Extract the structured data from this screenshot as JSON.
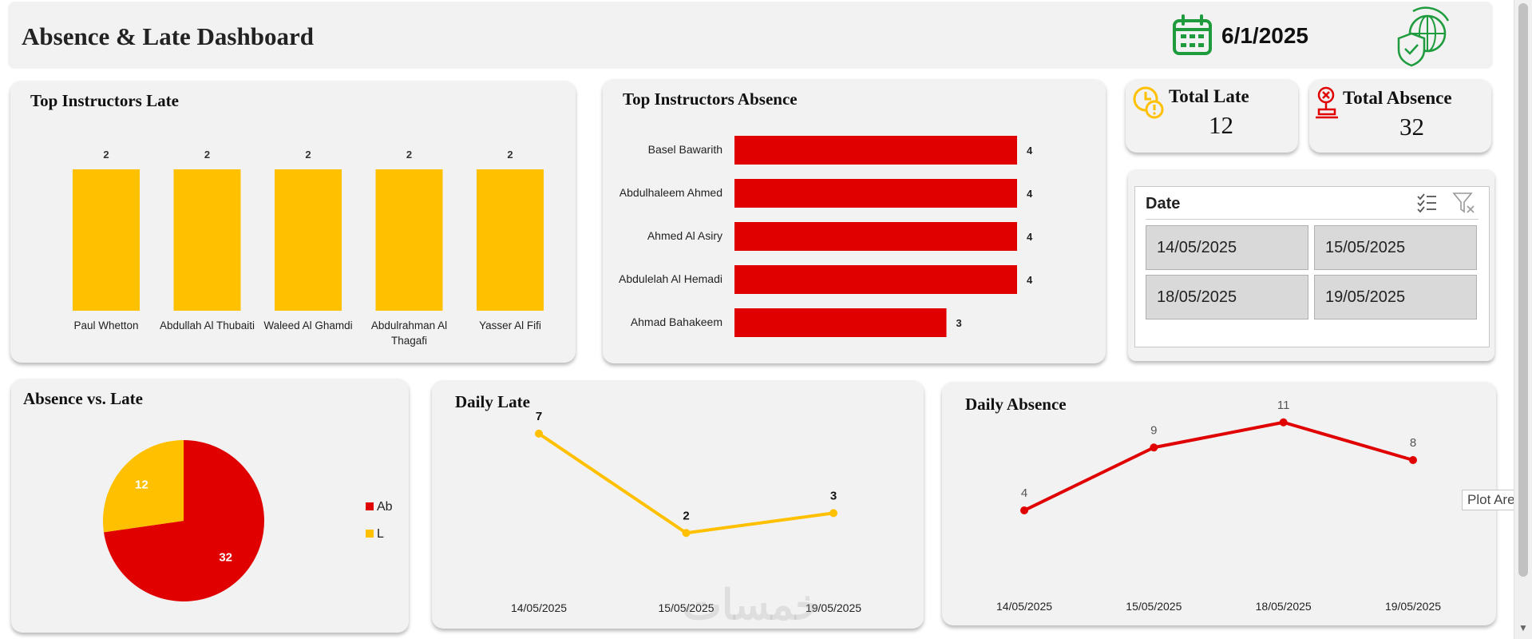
{
  "header": {
    "title": "Absence & Late  Dashboard",
    "date": "6/1/2025",
    "calendar_icon": "calendar-icon",
    "logo_icon": "globe-shield-icon"
  },
  "kpis": {
    "late_label": "Total Late",
    "late_value": "12",
    "absence_label": "Total Absence",
    "absence_value": "32"
  },
  "slicer": {
    "title": "Date",
    "items": [
      "14/05/2025",
      "15/05/2025",
      "18/05/2025",
      "19/05/2025"
    ]
  },
  "tooltip": "Plot Area",
  "watermark": "خمسات",
  "colors": {
    "yellow": "#FFC000",
    "red": "#E00000",
    "card": "#F2F2F2",
    "green": "#1e9b3c"
  },
  "chart_data": [
    {
      "id": "late",
      "type": "bar",
      "title": "Top Instructors Late",
      "categories": [
        "Paul Whetton",
        "Abdullah Al Thubaiti",
        "Waleed Al Ghamdi",
        "Abdulrahman Al Thagafi",
        "Yasser Al Fifi"
      ],
      "category_lines": [
        [
          "Paul Whetton"
        ],
        [
          "Abdullah Al Thubaiti"
        ],
        [
          "Waleed Al Ghamdi"
        ],
        [
          "Abdulrahman Al",
          "Thagafi"
        ],
        [
          "Yasser Al Fifi"
        ]
      ],
      "values": [
        2,
        2,
        2,
        2,
        2
      ],
      "ylim": [
        0,
        2
      ]
    },
    {
      "id": "absence",
      "type": "bar",
      "orientation": "horizontal",
      "title": "Top Instructors Absence",
      "categories": [
        "Basel Bawarith",
        "Abdulhaleem Ahmed",
        "Ahmed Al Asiry",
        "Abdulelah Al Hemadi",
        "Ahmad Bahakeem"
      ],
      "values": [
        4,
        4,
        4,
        4,
        3
      ],
      "xlim": [
        0,
        4
      ]
    },
    {
      "id": "pie",
      "type": "pie",
      "title": "Absence vs. Late",
      "labels": [
        "Ab",
        "L"
      ],
      "values": [
        32,
        12
      ],
      "legend": "right"
    },
    {
      "id": "daily_late",
      "type": "line",
      "title": "Daily Late",
      "x": [
        "14/05/2025",
        "15/05/2025",
        "19/05/2025"
      ],
      "values": [
        7,
        2,
        3
      ],
      "ylim": [
        0,
        8
      ]
    },
    {
      "id": "daily_absence",
      "type": "line",
      "title": "Daily Absence",
      "x": [
        "14/05/2025",
        "15/05/2025",
        "18/05/2025",
        "19/05/2025"
      ],
      "values": [
        4,
        9,
        11,
        8
      ],
      "ylim": [
        0,
        12
      ]
    }
  ]
}
